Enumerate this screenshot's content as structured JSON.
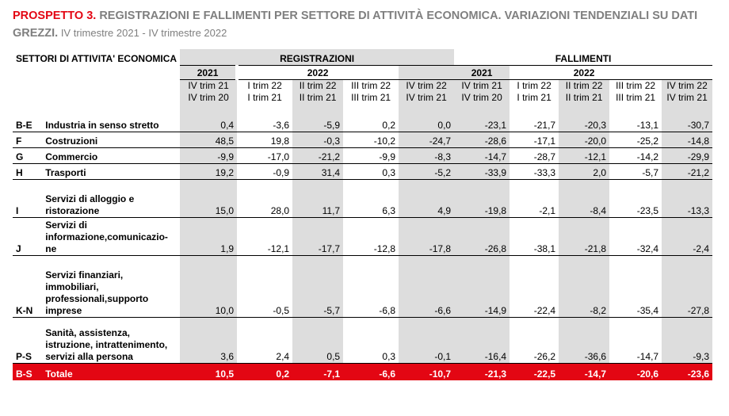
{
  "title": {
    "lead": "PROSPETTO 3.",
    "main": " REGISTRAZIONI E FALLIMENTI PER SETTORE DI ATTIVITÀ ECONOMICA. VARIAZIONI TENDENZIALI SU DATI GREZZI.",
    "sub": " IV trimestre 2021 - IV trimestre 2022"
  },
  "header": {
    "sectors_label": "SETTORI DI ATTIVITA' ECONOMICA",
    "registrazioni": "REGISTRAZIONI",
    "fallimenti": "FALLIMENTI",
    "year_2021": "2021",
    "year_2022": "2022",
    "periods": [
      {
        "top": "IV trim 21",
        "bottom": "IV trim 20"
      },
      {
        "top": "I trim 22",
        "bottom": "I trim 21"
      },
      {
        "top": "II trim 22",
        "bottom": "II trim 21"
      },
      {
        "top": "III trim 22",
        "bottom": "III trim 21"
      },
      {
        "top": "IV trim 22",
        "bottom": "IV trim 21"
      }
    ]
  },
  "rows": [
    {
      "code": "B-E",
      "label": "Industria in senso stretto",
      "reg": [
        "0,4",
        "-3,6",
        "-5,9",
        "0,2",
        "0,0"
      ],
      "fal": [
        "-23,1",
        "-21,7",
        "-20,3",
        "-13,1",
        "-30,7"
      ]
    },
    {
      "code": "F",
      "label": "Costruzioni",
      "reg": [
        "48,5",
        "19,8",
        "-0,3",
        "-10,2",
        "-24,7"
      ],
      "fal": [
        "-28,6",
        "-17,1",
        "-20,0",
        "-25,2",
        "-14,8"
      ]
    },
    {
      "code": "G",
      "label": "Commercio",
      "reg": [
        "-9,9",
        "-17,0",
        "-21,2",
        "-9,9",
        "-8,3"
      ],
      "fal": [
        "-14,7",
        "-28,7",
        "-12,1",
        "-14,2",
        "-29,9"
      ]
    },
    {
      "code": "H",
      "label": "Trasporti",
      "reg": [
        "19,2",
        "-0,9",
        "31,4",
        "0,3",
        "-5,2"
      ],
      "fal": [
        "-33,9",
        "-33,3",
        "2,0",
        "-5,7",
        "-21,2"
      ]
    },
    {
      "code": "I",
      "label": "Servizi di alloggio  e ristorazione",
      "reg": [
        "15,0",
        "28,0",
        "11,7",
        "6,3",
        "4,9"
      ],
      "fal": [
        "-19,8",
        "-2,1",
        "-8,4",
        "-23,5",
        "-13,3"
      ]
    },
    {
      "code": "J",
      "label": "Servizi di informazione,comunicazio-ne",
      "reg": [
        "1,9",
        "-12,1",
        "-17,7",
        "-12,8",
        "-17,8"
      ],
      "fal": [
        "-26,8",
        "-38,1",
        "-21,8",
        "-32,4",
        "-2,4"
      ]
    },
    {
      "code": "K-N",
      "label": "Servizi finanziari, immobiliari, professionali,supporto imprese",
      "reg": [
        "10,0",
        "-0,5",
        "-5,7",
        "-6,8",
        "-6,6"
      ],
      "fal": [
        "-14,9",
        "-22,4",
        "-8,2",
        "-35,4",
        "-27,8"
      ]
    },
    {
      "code": "P-S",
      "label": "Sanità, assistenza, istruzione, intrattenimento, servizi alla persona",
      "reg": [
        "3,6",
        "2,4",
        "0,5",
        "0,3",
        "-0,1"
      ],
      "fal": [
        "-16,4",
        "-26,2",
        "-36,6",
        "-14,7",
        "-9,3"
      ]
    }
  ],
  "total": {
    "code": "B-S",
    "label": "Totale",
    "reg": [
      "10,5",
      "0,2",
      "-7,1",
      "-6,6",
      "-10,7"
    ],
    "fal": [
      "-21,3",
      "-22,5",
      "-14,7",
      "-20,6",
      "-23,6"
    ]
  },
  "colors": {
    "accent": "#e30613",
    "shade": "#dddddd",
    "title_gray": "#7f7f7f"
  }
}
